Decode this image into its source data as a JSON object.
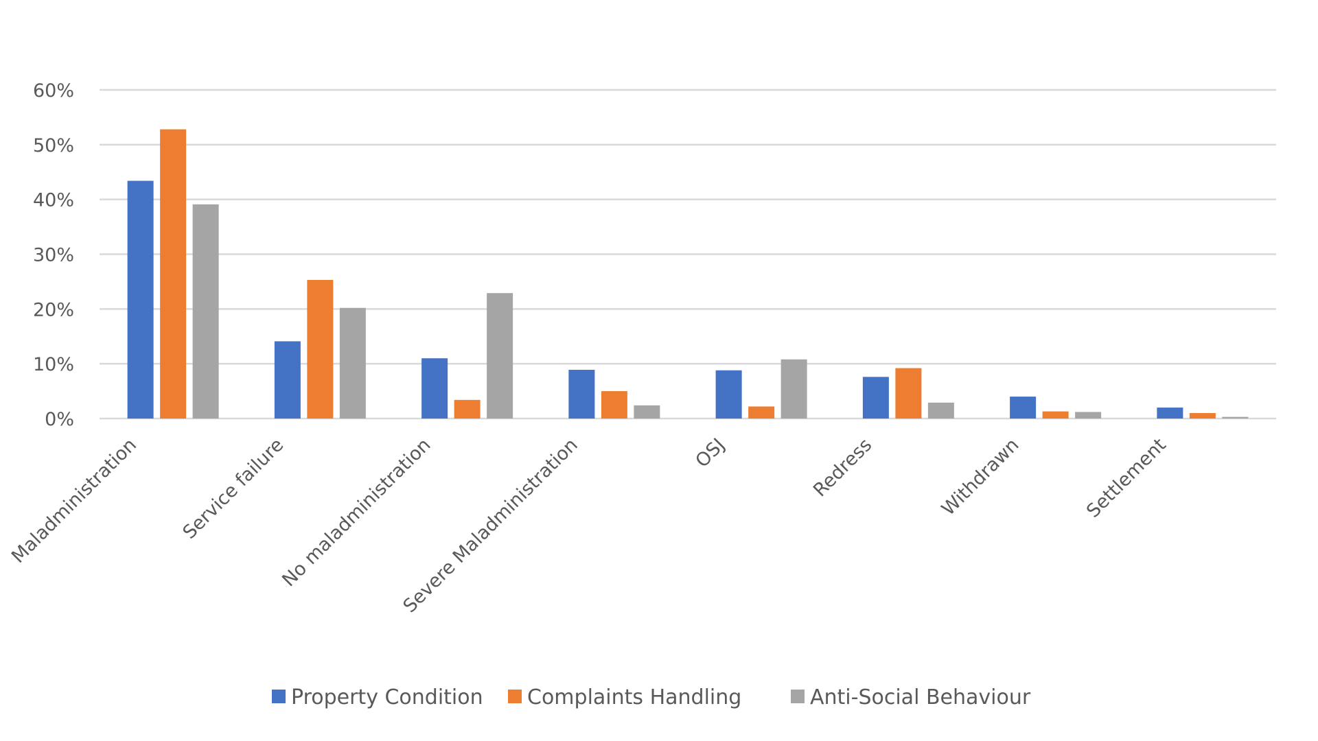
{
  "chart_data": {
    "type": "bar",
    "title": "",
    "xlabel": "",
    "ylabel": "",
    "ylim": [
      0,
      0.6
    ],
    "yticks": [
      "0%",
      "10%",
      "20%",
      "30%",
      "40%",
      "50%",
      "60%"
    ],
    "ytick_values": [
      0,
      0.1,
      0.2,
      0.3,
      0.4,
      0.5,
      0.6
    ],
    "grid": true,
    "legend_position": "bottom",
    "categories": [
      "Maladministration",
      "Service failure",
      "No maladministration",
      "Severe Maladministration",
      "OSJ",
      "Redress",
      "Withdrawn",
      "Settlement"
    ],
    "series": [
      {
        "name": "Property Condition",
        "color": "#4472C4",
        "values": [
          0.434,
          0.141,
          0.11,
          0.089,
          0.088,
          0.076,
          0.04,
          0.02
        ]
      },
      {
        "name": "Complaints Handling",
        "color": "#ED7D31",
        "values": [
          0.528,
          0.253,
          0.034,
          0.05,
          0.022,
          0.092,
          0.013,
          0.01
        ]
      },
      {
        "name": "Anti-Social Behaviour",
        "color": "#A5A5A5",
        "values": [
          0.391,
          0.202,
          0.229,
          0.024,
          0.108,
          0.029,
          0.012,
          0.003
        ]
      }
    ]
  }
}
